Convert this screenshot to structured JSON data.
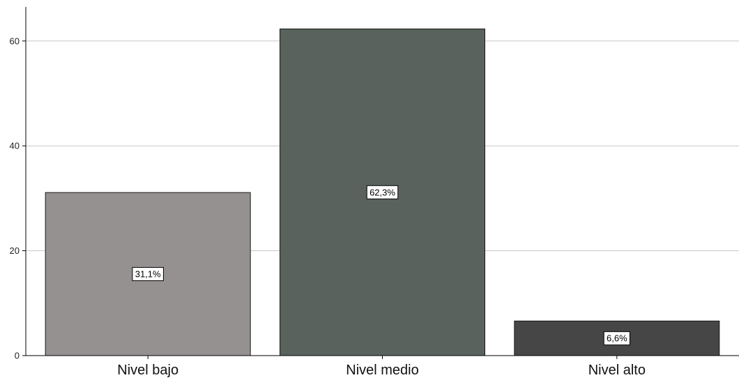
{
  "chart_data": {
    "type": "bar",
    "categories": [
      "Nivel bajo",
      "Nivel medio",
      "Nivel alto"
    ],
    "values": [
      31.1,
      62.3,
      6.6
    ],
    "data_labels": [
      "31,1%",
      "62,3%",
      "6,6%"
    ],
    "colors": [
      "#959190",
      "#59625c",
      "#464646"
    ],
    "title": "",
    "xlabel": "",
    "ylabel": "",
    "ylim": [
      0,
      66
    ],
    "yticks": [
      0,
      20,
      40,
      60
    ],
    "grid": true,
    "legend": "none"
  }
}
